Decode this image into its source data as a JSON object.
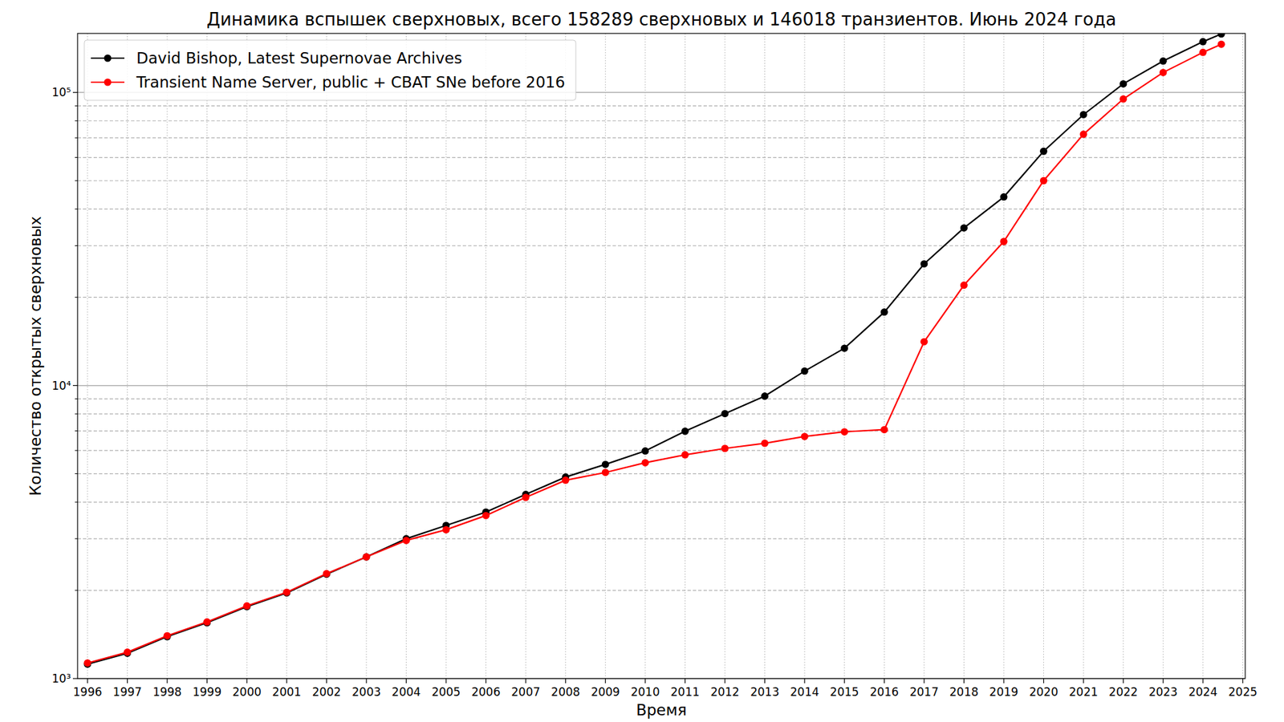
{
  "chart_data": {
    "type": "line",
    "title": "Динамика вспышек сверхновых, всего 158289 сверхновых и 146018 транзиентов. Июнь 2024 года",
    "x_label": "Время",
    "y_label": "Количество открытых сверхновых",
    "x": [
      1996,
      1997,
      1998,
      1999,
      2000,
      2001,
      2002,
      2003,
      2004,
      2005,
      2006,
      2007,
      2008,
      2009,
      2010,
      2011,
      2012,
      2013,
      2014,
      2015,
      2016,
      2017,
      2018,
      2019,
      2020,
      2021,
      2022,
      2023,
      2024,
      2024.46
    ],
    "series": [
      {
        "name": "David Bishop, Latest Supernovae Archives",
        "color": "#000000",
        "marker": "circle",
        "line_style": "solid",
        "values": [
          1120,
          1220,
          1390,
          1550,
          1760,
          1960,
          2270,
          2600,
          3000,
          3330,
          3700,
          4250,
          4870,
          5380,
          5980,
          6980,
          8020,
          9200,
          11200,
          13400,
          17800,
          26000,
          34500,
          44000,
          63000,
          84000,
          107000,
          128000,
          149000,
          158289
        ]
      },
      {
        "name": "Transient Name Server, public + CBAT SNe before 2016",
        "color": "#ff0000",
        "marker": "circle",
        "line_style": "solid",
        "values": [
          1130,
          1230,
          1400,
          1560,
          1770,
          1970,
          2280,
          2600,
          2960,
          3220,
          3600,
          4150,
          4750,
          5050,
          5450,
          5800,
          6100,
          6350,
          6700,
          6950,
          7070,
          14100,
          22000,
          31000,
          50000,
          72000,
          95000,
          117000,
          137000,
          146018
        ]
      }
    ],
    "xlim": [
      1995.75,
      2025.06
    ],
    "xticks": [
      1996,
      1997,
      1998,
      1999,
      2000,
      2001,
      2002,
      2003,
      2004,
      2005,
      2006,
      2007,
      2008,
      2009,
      2010,
      2011,
      2012,
      2013,
      2014,
      2015,
      2016,
      2017,
      2018,
      2019,
      2020,
      2021,
      2022,
      2023,
      2024,
      2025
    ],
    "ylim": [
      1000,
      159000
    ],
    "yticks": [
      {
        "value": 1000,
        "label": "10³"
      },
      {
        "value": 10000,
        "label": "10⁴"
      },
      {
        "value": 100000,
        "label": "10⁵"
      }
    ],
    "log": "y",
    "grid": true,
    "legend": "upper left"
  }
}
